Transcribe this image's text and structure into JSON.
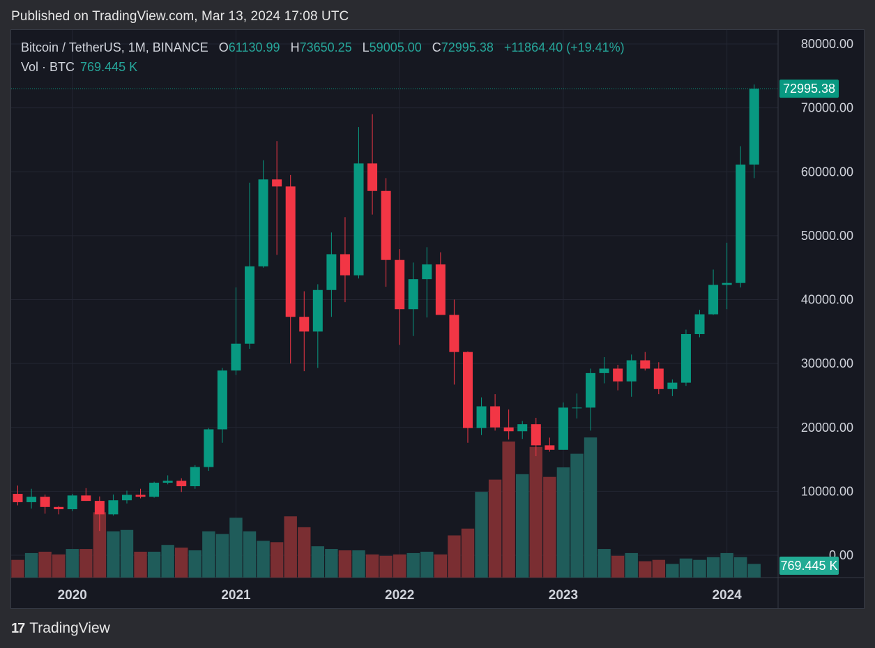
{
  "header": {
    "published": "Published on TradingView.com, Mar 13, 2024 17:08 UTC"
  },
  "legend": {
    "symbol": "Bitcoin / TetherUS, 1M, BINANCE",
    "open_label": "O",
    "open": "61130.99",
    "high_label": "H",
    "high": "73650.25",
    "low_label": "L",
    "low": "59005.00",
    "close_label": "C",
    "close": "72995.38",
    "change": "+11864.40 (+19.41%)",
    "vol_label": "Vol · BTC",
    "vol_value": "769.445 K"
  },
  "badges": {
    "price": "72995.38",
    "volume": "769.445 K"
  },
  "footer": {
    "brand": "TradingView",
    "logo": "17"
  },
  "colors": {
    "up": "#089981",
    "down": "#f23645",
    "vol_up": "#1f5c5a",
    "vol_down": "#7a2e32",
    "background": "#161821",
    "grid": "#232632",
    "text": "#d1d4dc"
  },
  "chart_data": {
    "type": "candlestick",
    "interval": "1M",
    "y_ticks": [
      "80000.00",
      "70000.00",
      "60000.00",
      "50000.00",
      "40000.00",
      "30000.00",
      "20000.00",
      "10000.00",
      "0.00"
    ],
    "ylim": [
      0,
      80000
    ],
    "x_ticks": [
      "2020",
      "2021",
      "2022",
      "2023",
      "2024"
    ],
    "x_tick_months": [
      "2020-01",
      "2021-01",
      "2022-01",
      "2023-01",
      "2024-01"
    ],
    "current_price": 72995.38,
    "months": [
      "2019-09",
      "2019-10",
      "2019-11",
      "2019-12",
      "2020-01",
      "2020-02",
      "2020-03",
      "2020-04",
      "2020-05",
      "2020-06",
      "2020-07",
      "2020-08",
      "2020-09",
      "2020-10",
      "2020-11",
      "2020-12",
      "2021-01",
      "2021-02",
      "2021-03",
      "2021-04",
      "2021-05",
      "2021-06",
      "2021-07",
      "2021-08",
      "2021-09",
      "2021-10",
      "2021-11",
      "2021-12",
      "2022-01",
      "2022-02",
      "2022-03",
      "2022-04",
      "2022-05",
      "2022-06",
      "2022-07",
      "2022-08",
      "2022-09",
      "2022-10",
      "2022-11",
      "2022-12",
      "2023-01",
      "2023-02",
      "2023-03",
      "2023-04",
      "2023-05",
      "2023-06",
      "2023-07",
      "2023-08",
      "2023-09",
      "2023-10",
      "2023-11",
      "2023-12",
      "2024-01",
      "2024-02",
      "2024-03"
    ],
    "ohlc": [
      [
        9600,
        10900,
        7800,
        8300
      ],
      [
        8300,
        10400,
        7300,
        9150
      ],
      [
        9150,
        9500,
        6500,
        7550
      ],
      [
        7550,
        7700,
        6400,
        7200
      ],
      [
        7200,
        9600,
        6900,
        9350
      ],
      [
        9350,
        10500,
        8500,
        8500
      ],
      [
        8500,
        9200,
        3800,
        6400
      ],
      [
        6400,
        9500,
        6200,
        8600
      ],
      [
        8600,
        10100,
        8100,
        9450
      ],
      [
        9450,
        10400,
        8900,
        9150
      ],
      [
        9150,
        11500,
        9000,
        11350
      ],
      [
        11350,
        12500,
        11100,
        11650
      ],
      [
        11650,
        12050,
        9900,
        10800
      ],
      [
        10800,
        14100,
        10400,
        13800
      ],
      [
        13800,
        19900,
        13200,
        19700
      ],
      [
        19700,
        29300,
        17600,
        28900
      ],
      [
        28900,
        41900,
        28200,
        33100
      ],
      [
        33100,
        58300,
        32300,
        45200
      ],
      [
        45200,
        61800,
        45000,
        58800
      ],
      [
        58800,
        64800,
        47000,
        57700
      ],
      [
        57700,
        59500,
        30000,
        37300
      ],
      [
        37300,
        41300,
        28800,
        35000
      ],
      [
        35000,
        42400,
        29300,
        41500
      ],
      [
        41500,
        50500,
        37300,
        47100
      ],
      [
        47100,
        52900,
        39600,
        43800
      ],
      [
        43800,
        67000,
        43300,
        61300
      ],
      [
        61300,
        69000,
        53300,
        57000
      ],
      [
        57000,
        59000,
        42000,
        46200
      ],
      [
        46200,
        47900,
        32900,
        38500
      ],
      [
        38500,
        45800,
        34300,
        43200
      ],
      [
        43200,
        48200,
        37200,
        45500
      ],
      [
        45500,
        47400,
        37600,
        37600
      ],
      [
        37600,
        40000,
        26700,
        31800
      ],
      [
        31800,
        31900,
        17600,
        19900
      ],
      [
        19900,
        24700,
        18800,
        23300
      ],
      [
        23300,
        25200,
        19500,
        20000
      ],
      [
        20000,
        22800,
        18100,
        19400
      ],
      [
        19400,
        21000,
        18200,
        20500
      ],
      [
        20500,
        21500,
        15500,
        17200
      ],
      [
        17200,
        18400,
        16200,
        16500
      ],
      [
        16500,
        23900,
        16500,
        23100
      ],
      [
        23100,
        25300,
        21400,
        23100
      ],
      [
        23100,
        29200,
        19500,
        28500
      ],
      [
        28500,
        31000,
        26900,
        29200
      ],
      [
        29200,
        29800,
        25800,
        27200
      ],
      [
        27200,
        31400,
        24800,
        30500
      ],
      [
        30500,
        31800,
        28900,
        29200
      ],
      [
        29200,
        30200,
        25200,
        26000
      ],
      [
        26000,
        27500,
        24900,
        27000
      ],
      [
        27000,
        35300,
        26500,
        34600
      ],
      [
        34600,
        38400,
        34100,
        37700
      ],
      [
        37700,
        44700,
        37600,
        42300
      ],
      [
        42300,
        48900,
        38500,
        42600
      ],
      [
        42600,
        64000,
        41900,
        61130
      ],
      [
        61130.99,
        73650.25,
        59005.0,
        72995.38
      ]
    ],
    "volume_up": [
      null,
      1.0,
      null,
      null,
      1.0,
      null,
      null,
      1.0,
      1.0,
      null,
      1.0,
      1.0,
      null,
      1.0,
      1.0,
      1.0,
      1.0,
      1.0,
      1.0,
      null,
      null,
      null,
      1.0,
      1.0,
      null,
      1.0,
      null,
      null,
      null,
      1.0,
      1.0,
      null,
      null,
      null,
      1.0,
      null,
      null,
      1.0,
      null,
      null,
      1.0,
      1.0,
      1.0,
      1.0,
      null,
      1.0,
      null,
      null,
      1.0,
      1.0,
      1.0,
      1.0,
      1.0,
      1.0,
      1.0
    ],
    "volume_relative": [
      0.13,
      0.18,
      0.19,
      0.17,
      0.21,
      0.21,
      0.48,
      0.34,
      0.35,
      0.19,
      0.19,
      0.24,
      0.22,
      0.2,
      0.34,
      0.32,
      0.44,
      0.34,
      0.27,
      0.26,
      0.45,
      0.37,
      0.23,
      0.21,
      0.2,
      0.2,
      0.17,
      0.16,
      0.17,
      0.18,
      0.19,
      0.17,
      0.31,
      0.36,
      0.63,
      0.72,
      1.0,
      0.76,
      0.96,
      0.74,
      0.81,
      0.91,
      1.03,
      0.21,
      0.16,
      0.18,
      0.12,
      0.13,
      0.1,
      0.14,
      0.13,
      0.15,
      0.18,
      0.15,
      0.1
    ]
  }
}
